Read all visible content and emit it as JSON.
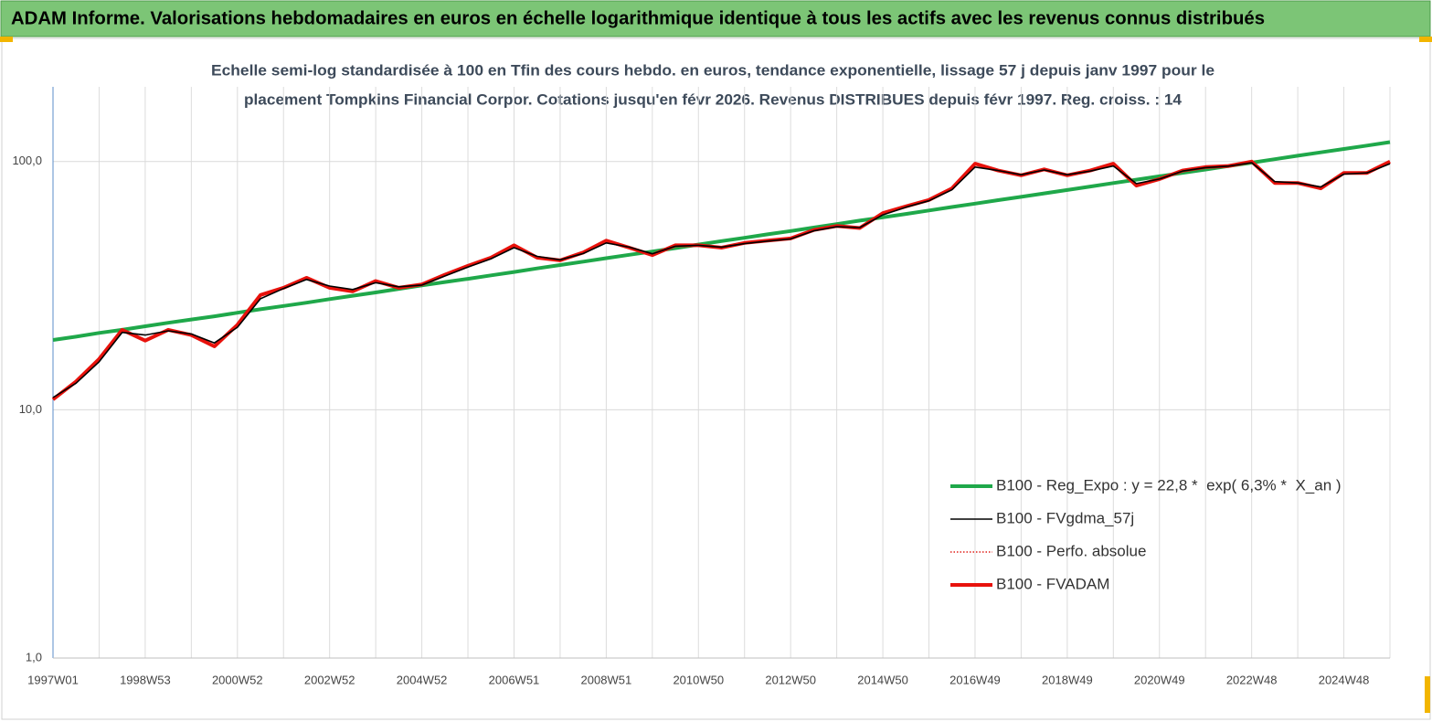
{
  "chart_data": {
    "type": "line",
    "title": "ADAM Informe. Valorisations hebdomadaires en euros en échelle logarithmique identique à tous les actifs avec les revenus connus distribués",
    "subtitle": [
      "Echelle semi-log standardisée à 100 en Tfin des cours hebdo. en euros, tendance exponentielle, lissage 57 j depuis janv 1997 pour le",
      "placement Tompkins Financial Corpor. Cotations jusqu'en févr 2026. Revenus DISTRIBUES depuis févr 1997. Reg. croiss. : 14"
    ],
    "log_scale": true,
    "ylim": [
      1,
      200
    ],
    "yticks": [
      {
        "value": 1,
        "label": "1,0"
      },
      {
        "value": 10,
        "label": "10,0"
      },
      {
        "value": 100,
        "label": "100,0"
      }
    ],
    "grid": true,
    "legend": "lower right",
    "categories": [
      "1997W01",
      null,
      null,
      null,
      "1998W53",
      null,
      null,
      null,
      "2000W52",
      null,
      null,
      null,
      "2002W52",
      null,
      null,
      null,
      "2004W52",
      null,
      null,
      null,
      "2006W51",
      null,
      null,
      null,
      "2008W51",
      null,
      null,
      null,
      "2010W50",
      null,
      null,
      null,
      "2012W50",
      null,
      null,
      null,
      "2014W50",
      null,
      null,
      null,
      "2016W49",
      null,
      null,
      null,
      "2018W49",
      null,
      null,
      null,
      "2020W49",
      null,
      null,
      null,
      "2022W48",
      null,
      null,
      null,
      "2024W48",
      null,
      null
    ],
    "series": [
      {
        "name": "B100 - Reg_Expo : y = 22,8 *  exp( 6,3% *  X_an )",
        "color": "#1fa84a",
        "style": "thick",
        "values": [
          19.1,
          19.7,
          20.4,
          21.0,
          21.7,
          22.4,
          23.1,
          23.8,
          24.6,
          25.4,
          26.2,
          27.0,
          27.9,
          28.8,
          29.7,
          30.7,
          31.7,
          32.7,
          33.7,
          34.8,
          35.9,
          37.1,
          38.3,
          39.5,
          40.8,
          42.1,
          43.4,
          44.8,
          46.3,
          47.8,
          49.3,
          50.9,
          52.5,
          54.2,
          56.0,
          57.8,
          59.6,
          61.5,
          63.5,
          65.6,
          67.7,
          69.9,
          72.1,
          74.4,
          76.8,
          79.3,
          81.9,
          84.5,
          87.2,
          90.0,
          92.9,
          95.9,
          99.0,
          102.2,
          105.5,
          108.9,
          112.4,
          116.0,
          119.8
        ]
      },
      {
        "name": "B100 - FVgdma_57j",
        "color": "#000000",
        "style": "thin",
        "values": [
          11.2,
          12.8,
          15.6,
          20.5,
          20.0,
          20.8,
          20.2,
          18.6,
          21.5,
          28.0,
          30.8,
          33.5,
          31.5,
          30.5,
          32.5,
          31.3,
          31.8,
          34.6,
          37.6,
          40.6,
          45.0,
          41.5,
          40.2,
          42.6,
          47.0,
          45.2,
          42.5,
          45.6,
          46.0,
          45.2,
          46.7,
          47.8,
          48.8,
          52.6,
          54.6,
          54.2,
          61.0,
          65.5,
          69.5,
          77.0,
          95.0,
          92.0,
          88.5,
          92.5,
          88.5,
          91.5,
          96.0,
          81.5,
          85.0,
          91.5,
          94.5,
          95.8,
          99.0,
          83.0,
          82.0,
          79.0,
          89.0,
          90.0,
          98.0
        ]
      },
      {
        "name": "B100 - Perfo. absolue",
        "color": "#e0201a",
        "style": "dotted",
        "values": [
          11,
          13,
          16,
          21,
          19,
          21,
          20,
          18,
          22,
          29,
          31,
          34,
          31,
          30,
          33,
          31,
          32,
          35,
          38,
          41,
          46,
          41,
          40,
          43,
          48,
          45,
          42,
          46,
          46,
          45,
          47,
          48,
          49,
          53,
          55,
          54,
          62,
          66,
          70,
          78,
          98,
          92,
          88,
          93,
          88,
          92,
          98,
          80,
          85,
          92,
          95,
          96,
          100,
          82,
          82,
          78,
          90,
          90,
          100
        ]
      },
      {
        "name": "B100 - FVADAM",
        "color": "#e8120c",
        "style": "thick",
        "values": [
          11,
          13,
          16,
          21,
          19,
          21,
          20,
          18,
          22,
          29,
          31,
          34,
          31,
          30,
          33,
          31,
          32,
          35,
          38,
          41,
          46,
          41,
          40,
          43,
          48,
          45,
          42,
          46,
          46,
          45,
          47,
          48,
          49,
          53,
          55,
          54,
          62,
          66,
          70,
          78,
          98,
          92,
          88,
          93,
          88,
          92,
          98,
          80,
          85,
          92,
          95,
          96,
          100,
          82,
          82,
          78,
          90,
          90,
          100
        ]
      }
    ]
  }
}
